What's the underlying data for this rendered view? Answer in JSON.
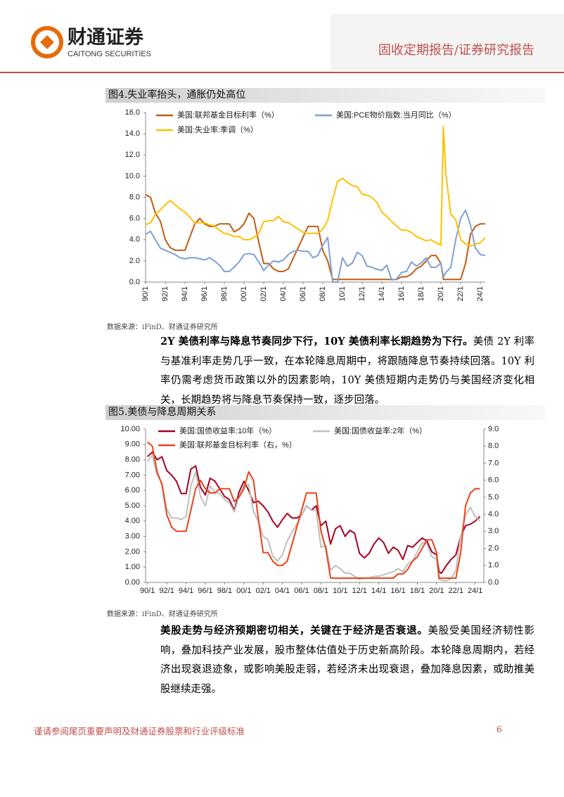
{
  "header": {
    "logo_cn": "财通证券",
    "logo_en": "CAITONG SECURITIES",
    "report_type": "固收定期报告/证券研究报告"
  },
  "figures": [
    {
      "title": "图4.失业率抬头，通胀仍处高位",
      "source": "数据来源：iFinD、财通证券研究所",
      "chart_data": {
        "type": "line",
        "x": [
          1990,
          1990.5,
          1991,
          1991.5,
          1992,
          1992.5,
          1993,
          1993.5,
          1994,
          1994.5,
          1995,
          1995.5,
          1996,
          1996.5,
          1997,
          1997.5,
          1998,
          1998.5,
          1999,
          1999.5,
          2000,
          2000.5,
          2001,
          2001.5,
          2002,
          2002.5,
          2003,
          2003.5,
          2004,
          2004.5,
          2005,
          2005.5,
          2006,
          2006.5,
          2007,
          2007.5,
          2008,
          2008.5,
          2009,
          2009.5,
          2010,
          2010.5,
          2011,
          2011.5,
          2012,
          2012.5,
          2013,
          2013.5,
          2014,
          2014.5,
          2015,
          2015.5,
          2016,
          2016.5,
          2017,
          2017.5,
          2018,
          2018.5,
          2019,
          2019.5,
          2020,
          2020.25,
          2020.5,
          2021,
          2021.5,
          2022,
          2022.5,
          2023,
          2023.5,
          2024,
          2024.5
        ],
        "xlim": [
          1990,
          2024.5
        ],
        "xticks": [
          {
            "value": 1990,
            "label": "90/1"
          },
          {
            "value": 1992,
            "label": "92/1"
          },
          {
            "value": 1994,
            "label": "94/1"
          },
          {
            "value": 1996,
            "label": "96/1"
          },
          {
            "value": 1998,
            "label": "98/1"
          },
          {
            "value": 2000,
            "label": "00/1"
          },
          {
            "value": 2002,
            "label": "02/1"
          },
          {
            "value": 2004,
            "label": "04/1"
          },
          {
            "value": 2006,
            "label": "06/1"
          },
          {
            "value": 2008,
            "label": "08/1"
          },
          {
            "value": 2010,
            "label": "10/1"
          },
          {
            "value": 2012,
            "label": "12/1"
          },
          {
            "value": 2014,
            "label": "14/1"
          },
          {
            "value": 2016,
            "label": "16/1"
          },
          {
            "value": 2018,
            "label": "18/1"
          },
          {
            "value": 2020,
            "label": "20/1"
          },
          {
            "value": 2022,
            "label": "22/1"
          },
          {
            "value": 2024,
            "label": "24/1"
          }
        ],
        "ylim": [
          0,
          16
        ],
        "yticks": [
          {
            "value": 0,
            "label": "0.0"
          },
          {
            "value": 2,
            "label": "2.0"
          },
          {
            "value": 4,
            "label": "4.0"
          },
          {
            "value": 6,
            "label": "6.0"
          },
          {
            "value": 8,
            "label": "8.0"
          },
          {
            "value": 10,
            "label": "10.0"
          },
          {
            "value": 12,
            "label": "12.0"
          },
          {
            "value": 14,
            "label": "14.0"
          },
          {
            "value": 16,
            "label": "16.0"
          }
        ],
        "series": [
          {
            "name": "美国:联邦基金目标利率（%）",
            "color": "#C55A11",
            "values": [
              8.25,
              8.0,
              6.5,
              5.75,
              4.0,
              3.25,
              3.0,
              3.0,
              3.0,
              4.25,
              5.5,
              6.0,
              5.5,
              5.25,
              5.25,
              5.5,
              5.5,
              5.5,
              4.75,
              5.0,
              5.5,
              6.5,
              6.0,
              3.75,
              1.75,
              1.75,
              1.25,
              1.0,
              1.0,
              1.25,
              2.25,
              3.25,
              4.25,
              5.25,
              5.25,
              5.25,
              3.0,
              2.0,
              0.25,
              0.25,
              0.25,
              0.25,
              0.25,
              0.25,
              0.25,
              0.25,
              0.25,
              0.25,
              0.25,
              0.25,
              0.25,
              0.25,
              0.5,
              0.5,
              0.75,
              1.25,
              1.5,
              2.0,
              2.5,
              2.5,
              1.75,
              0.25,
              0.25,
              0.25,
              0.25,
              0.25,
              1.75,
              4.5,
              5.25,
              5.5,
              5.5
            ]
          },
          {
            "name": "美国:PCE物价指数:当月同比（%）",
            "color": "#7F9FD3",
            "values": [
              4.5,
              4.8,
              4.0,
              3.2,
              3.0,
              2.8,
              2.6,
              2.3,
              2.2,
              2.3,
              2.3,
              2.2,
              2.1,
              2.3,
              2.0,
              1.6,
              1.0,
              1.0,
              1.4,
              1.9,
              2.6,
              2.7,
              2.6,
              1.9,
              1.1,
              1.6,
              2.0,
              1.9,
              2.1,
              2.6,
              2.9,
              3.0,
              2.9,
              2.9,
              2.3,
              2.5,
              3.5,
              4.2,
              0.0,
              0.0,
              2.3,
              1.5,
              1.8,
              2.8,
              2.5,
              1.5,
              1.4,
              1.2,
              1.1,
              1.6,
              0.2,
              0.3,
              0.9,
              1.0,
              1.9,
              1.5,
              1.8,
              2.3,
              1.4,
              1.4,
              1.8,
              0.5,
              0.9,
              1.4,
              4.0,
              6.0,
              6.8,
              5.4,
              3.2,
              2.6,
              2.5
            ]
          },
          {
            "name": "美国:失业率:季调（%）",
            "color": "#FFC000",
            "values": [
              5.4,
              5.6,
              6.4,
              6.8,
              7.3,
              7.7,
              7.3,
              6.9,
              6.6,
              6.1,
              5.6,
              5.6,
              5.6,
              5.4,
              5.3,
              4.9,
              4.6,
              4.5,
              4.3,
              4.3,
              4.0,
              4.0,
              4.2,
              4.6,
              5.7,
              5.8,
              5.8,
              6.2,
              5.7,
              5.6,
              5.3,
              5.0,
              4.7,
              4.6,
              4.6,
              4.6,
              5.0,
              5.8,
              7.8,
              9.5,
              9.8,
              9.4,
              9.1,
              9.0,
              8.3,
              8.2,
              8.0,
              7.5,
              6.6,
              6.2,
              5.7,
              5.3,
              4.9,
              4.9,
              4.7,
              4.3,
              4.1,
              3.9,
              4.0,
              3.7,
              3.5,
              14.7,
              10.2,
              6.4,
              5.9,
              4.0,
              3.6,
              3.4,
              3.6,
              3.7,
              4.2
            ]
          }
        ]
      }
    },
    {
      "title": "图5.美债与降息周期关系",
      "source": "数据来源：iFinD、财通证券研究所",
      "chart_data": {
        "type": "line",
        "x": [
          1990,
          1990.5,
          1991,
          1991.5,
          1992,
          1992.5,
          1993,
          1993.5,
          1994,
          1994.5,
          1995,
          1995.5,
          1996,
          1996.5,
          1997,
          1997.5,
          1998,
          1998.5,
          1999,
          1999.5,
          2000,
          2000.5,
          2001,
          2001.5,
          2002,
          2002.5,
          2003,
          2003.5,
          2004,
          2004.5,
          2005,
          2005.5,
          2006,
          2006.5,
          2007,
          2007.5,
          2008,
          2008.5,
          2009,
          2009.5,
          2010,
          2010.5,
          2011,
          2011.5,
          2012,
          2012.5,
          2013,
          2013.5,
          2014,
          2014.5,
          2015,
          2015.5,
          2016,
          2016.5,
          2017,
          2017.5,
          2018,
          2018.5,
          2019,
          2019.5,
          2020,
          2020.25,
          2020.5,
          2021,
          2021.5,
          2022,
          2022.5,
          2023,
          2023.5,
          2024,
          2024.5
        ],
        "xlim": [
          1989.8,
          2024.9
        ],
        "xticks": [
          {
            "value": 1990,
            "label": "90/1"
          },
          {
            "value": 1992,
            "label": "92/1"
          },
          {
            "value": 1994,
            "label": "94/1"
          },
          {
            "value": 1996,
            "label": "96/1"
          },
          {
            "value": 1998,
            "label": "98/1"
          },
          {
            "value": 2000,
            "label": "00/1"
          },
          {
            "value": 2002,
            "label": "02/1"
          },
          {
            "value": 2004,
            "label": "04/1"
          },
          {
            "value": 2006,
            "label": "06/1"
          },
          {
            "value": 2008,
            "label": "08/1"
          },
          {
            "value": 2010,
            "label": "10/1"
          },
          {
            "value": 2012,
            "label": "12/1"
          },
          {
            "value": 2014,
            "label": "14/1"
          },
          {
            "value": 2016,
            "label": "16/1"
          },
          {
            "value": 2018,
            "label": "18/1"
          },
          {
            "value": 2020,
            "label": "20/1"
          },
          {
            "value": 2022,
            "label": "22/1"
          },
          {
            "value": 2024,
            "label": "24/1"
          }
        ],
        "ylim": [
          0,
          10
        ],
        "yticks": [
          {
            "value": 0,
            "label": "0.00"
          },
          {
            "value": 1,
            "label": "1.00"
          },
          {
            "value": 2,
            "label": "2.00"
          },
          {
            "value": 3,
            "label": "3.00"
          },
          {
            "value": 4,
            "label": "4.00"
          },
          {
            "value": 5,
            "label": "5.00"
          },
          {
            "value": 6,
            "label": "6.00"
          },
          {
            "value": 7,
            "label": "7.00"
          },
          {
            "value": 8,
            "label": "8.00"
          },
          {
            "value": 9,
            "label": "9.00"
          },
          {
            "value": 10,
            "label": "10.00"
          }
        ],
        "y2lim": [
          0,
          9
        ],
        "y2ticks": [
          {
            "value": 0,
            "label": "0.0"
          },
          {
            "value": 1,
            "label": "1.0"
          },
          {
            "value": 2,
            "label": "2.0"
          },
          {
            "value": 3,
            "label": "3.0"
          },
          {
            "value": 4,
            "label": "4.0"
          },
          {
            "value": 5,
            "label": "5.0"
          },
          {
            "value": 6,
            "label": "6.0"
          },
          {
            "value": 7,
            "label": "7.0"
          },
          {
            "value": 8,
            "label": "8.0"
          },
          {
            "value": 9,
            "label": "9.0"
          }
        ],
        "series": [
          {
            "name": "美国:国债收益率:10年（%）",
            "color": "#A50021",
            "values": [
              8.2,
              8.5,
              8.0,
              8.2,
              7.3,
              7.0,
              6.6,
              5.8,
              5.8,
              7.4,
              7.6,
              6.2,
              5.7,
              6.8,
              6.6,
              6.1,
              5.6,
              5.4,
              4.7,
              5.9,
              6.6,
              6.0,
              5.2,
              5.3,
              5.0,
              4.6,
              4.0,
              3.6,
              4.1,
              4.5,
              4.2,
              4.2,
              4.4,
              5.0,
              4.7,
              5.0,
              3.7,
              4.0,
              2.5,
              3.5,
              3.7,
              3.0,
              3.4,
              3.2,
              1.9,
              1.6,
              1.9,
              2.5,
              2.9,
              2.6,
              1.9,
              2.3,
              2.1,
              1.5,
              2.4,
              2.3,
              2.6,
              2.9,
              2.7,
              2.0,
              1.8,
              0.7,
              0.6,
              1.1,
              1.5,
              1.8,
              3.0,
              3.7,
              3.8,
              4.0,
              4.3
            ]
          },
          {
            "name": "美国:国债收益率:2年（%）",
            "color": "#BFBFBF",
            "values": [
              7.9,
              8.3,
              7.0,
              6.5,
              4.8,
              4.2,
              4.2,
              4.1,
              4.3,
              6.3,
              7.2,
              5.6,
              5.0,
              6.3,
              5.9,
              5.8,
              5.4,
              5.2,
              4.6,
              5.6,
              6.4,
              6.4,
              4.6,
              4.0,
              3.0,
              2.8,
              1.7,
              1.4,
              1.8,
              2.7,
              3.3,
              3.8,
              4.4,
              5.0,
              4.7,
              4.7,
              2.3,
              2.4,
              0.8,
              1.1,
              0.9,
              0.6,
              0.6,
              0.4,
              0.2,
              0.3,
              0.3,
              0.4,
              0.4,
              0.5,
              0.6,
              0.7,
              0.9,
              0.7,
              1.2,
              1.4,
              2.0,
              2.6,
              2.5,
              1.7,
              1.5,
              0.2,
              0.15,
              0.1,
              0.25,
              0.8,
              3.0,
              4.4,
              4.9,
              4.3,
              4.0
            ]
          },
          {
            "name": "美国:联邦基金目标利率（右，%）",
            "color": "#E8431B",
            "axis": "y2",
            "values": [
              8.25,
              8.0,
              6.5,
              5.75,
              4.0,
              3.25,
              3.0,
              3.0,
              3.0,
              4.25,
              5.5,
              6.0,
              5.5,
              5.25,
              5.25,
              5.5,
              5.5,
              5.5,
              4.75,
              5.0,
              5.5,
              6.5,
              6.0,
              3.75,
              1.75,
              1.75,
              1.25,
              1.0,
              1.0,
              1.25,
              2.25,
              3.25,
              4.25,
              5.25,
              5.25,
              5.25,
              3.0,
              2.0,
              0.25,
              0.25,
              0.25,
              0.25,
              0.25,
              0.25,
              0.25,
              0.25,
              0.25,
              0.25,
              0.25,
              0.25,
              0.25,
              0.25,
              0.5,
              0.5,
              0.75,
              1.25,
              1.5,
              2.0,
              2.5,
              2.5,
              1.75,
              0.25,
              0.25,
              0.25,
              0.25,
              0.25,
              1.75,
              4.5,
              5.25,
              5.5,
              5.5
            ]
          }
        ]
      }
    }
  ],
  "paragraphs": [
    {
      "bold": "2Y 美债利率与降息节奏同步下行，10Y 美债利率长期趋势为下行。",
      "text": "美债 2Y 利率与基准利率走势几乎一致，在本轮降息周期中，将跟随降息节奏持续回落。10Y 利率仍需考虑货币政策以外的因素影响，10Y 美债短期内走势仍与美国经济变化相关，长期趋势将与降息节奏保持一致，逐步回落。"
    },
    {
      "bold": "美股走势与经济预期密切相关，关键在于经济是否衰退。",
      "text": "美股受美国经济韧性影响，叠加科技产业发展，股市整体估值处于历史新高阶段。本轮降息周期内，若经济出现衰退迹象，或影响美股走弱，若经济未出现衰退，叠加降息因素，或助推美股继续走强。"
    }
  ],
  "footer": {
    "disclaimer": "谨请参阅尾页重要声明及财通证券股票和行业评级标准",
    "page": 6
  }
}
